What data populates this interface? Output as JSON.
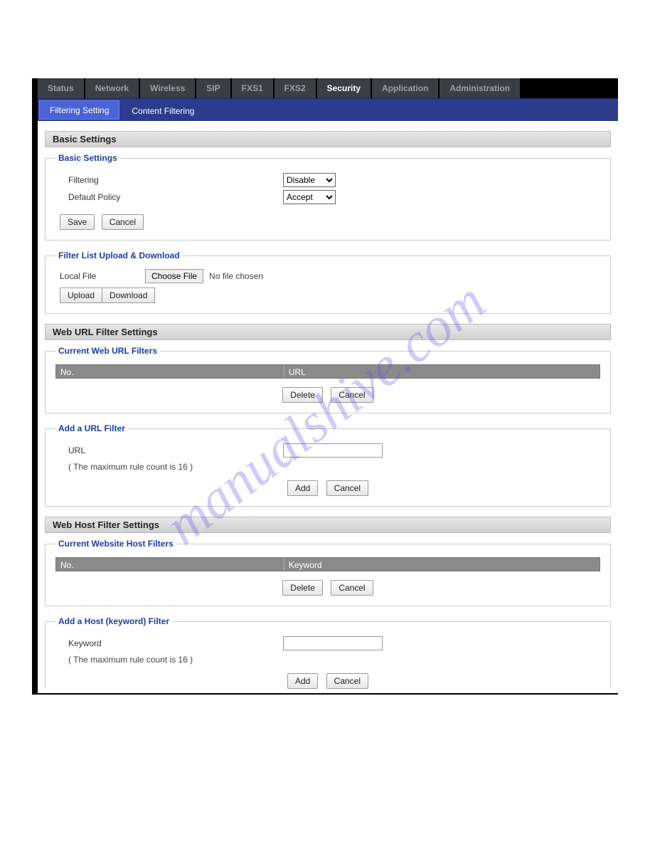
{
  "watermark": "manualshive.com",
  "top_tabs": {
    "items": [
      {
        "label": "Status"
      },
      {
        "label": "Network"
      },
      {
        "label": "Wireless"
      },
      {
        "label": "SIP"
      },
      {
        "label": "FXS1"
      },
      {
        "label": "FXS2"
      },
      {
        "label": "Security",
        "active": true
      },
      {
        "label": "Application"
      },
      {
        "label": "Administration"
      }
    ]
  },
  "sub_tabs": {
    "items": [
      {
        "label": "Filtering Setting",
        "active": true
      },
      {
        "label": "Content Filtering"
      }
    ]
  },
  "sections": {
    "basic_bar": "Basic Settings",
    "url_bar": "Web URL Filter Settings",
    "host_bar": "Web Host Filter Settings"
  },
  "basic": {
    "legend": "Basic Settings",
    "filtering_label": "Filtering",
    "filtering_value": "Disable",
    "policy_label": "Default Policy",
    "policy_value": "Accept",
    "save": "Save",
    "cancel": "Cancel"
  },
  "upload": {
    "legend": "Filter List Upload & Download",
    "local_file_label": "Local File",
    "choose_file": "Choose File",
    "no_file": "No file chosen",
    "upload": "Upload",
    "download": "Download"
  },
  "url_filters": {
    "current_legend": "Current Web URL Filters",
    "col_no": "No.",
    "col_url": "URL",
    "delete": "Delete",
    "cancel": "Cancel",
    "add_legend": "Add a URL Filter",
    "url_label": "URL",
    "max_note": "( The maximum rule count is 16 )",
    "add": "Add"
  },
  "host_filters": {
    "current_legend": "Current Website Host Filters",
    "col_no": "No.",
    "col_keyword": "Keyword",
    "delete": "Delete",
    "cancel": "Cancel",
    "add_legend": "Add a Host (keyword) Filter",
    "keyword_label": "Keyword",
    "max_note": "( The maximum rule count is 16 )",
    "add": "Add"
  }
}
